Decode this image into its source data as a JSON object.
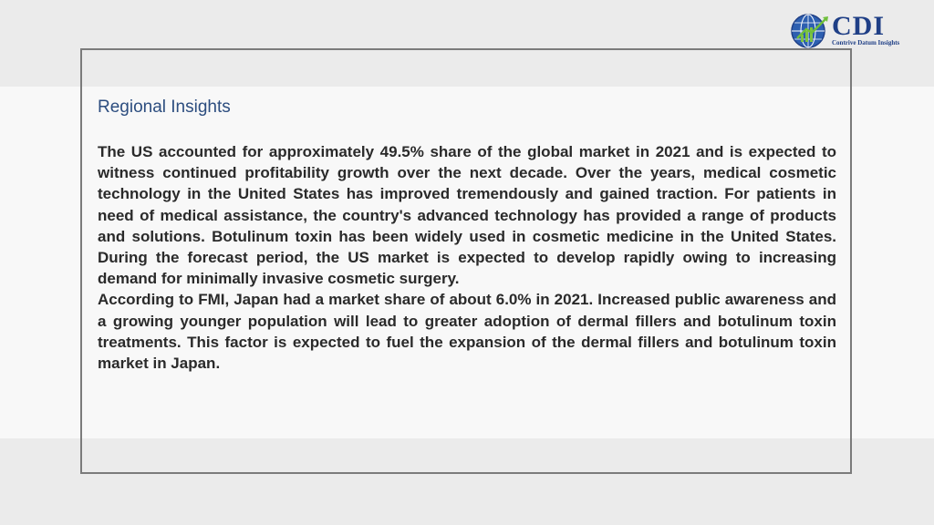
{
  "logo": {
    "name": "CDI",
    "tagline": "Contrive Datum Insights"
  },
  "section": {
    "heading": "Regional Insights",
    "paragraphs": [
      "The US accounted for approximately 49.5% share of the global market in 2021 and is expected to witness continued profitability growth over the next decade. Over the years, medical cosmetic technology in the United States has improved tremendously and gained traction. For patients in need of medical assistance, the country's advanced technology has provided a range of products and solutions. Botulinum toxin has been widely used in cosmetic medicine in the United States. During the forecast period, the US market is expected to develop rapidly owing to increasing demand for minimally invasive cosmetic surgery.",
      "According to FMI, Japan had a market share of about 6.0% in 2021. Increased public awareness and a growing younger population will lead to greater adoption of dermal fillers and botulinum toxin treatments. This factor is expected to fuel the expansion of the dermal fillers and botulinum toxin market in Japan."
    ]
  },
  "colors": {
    "brand": "#1f3f86",
    "heading": "#2c4d7f",
    "frame": "#7b7b7b"
  }
}
